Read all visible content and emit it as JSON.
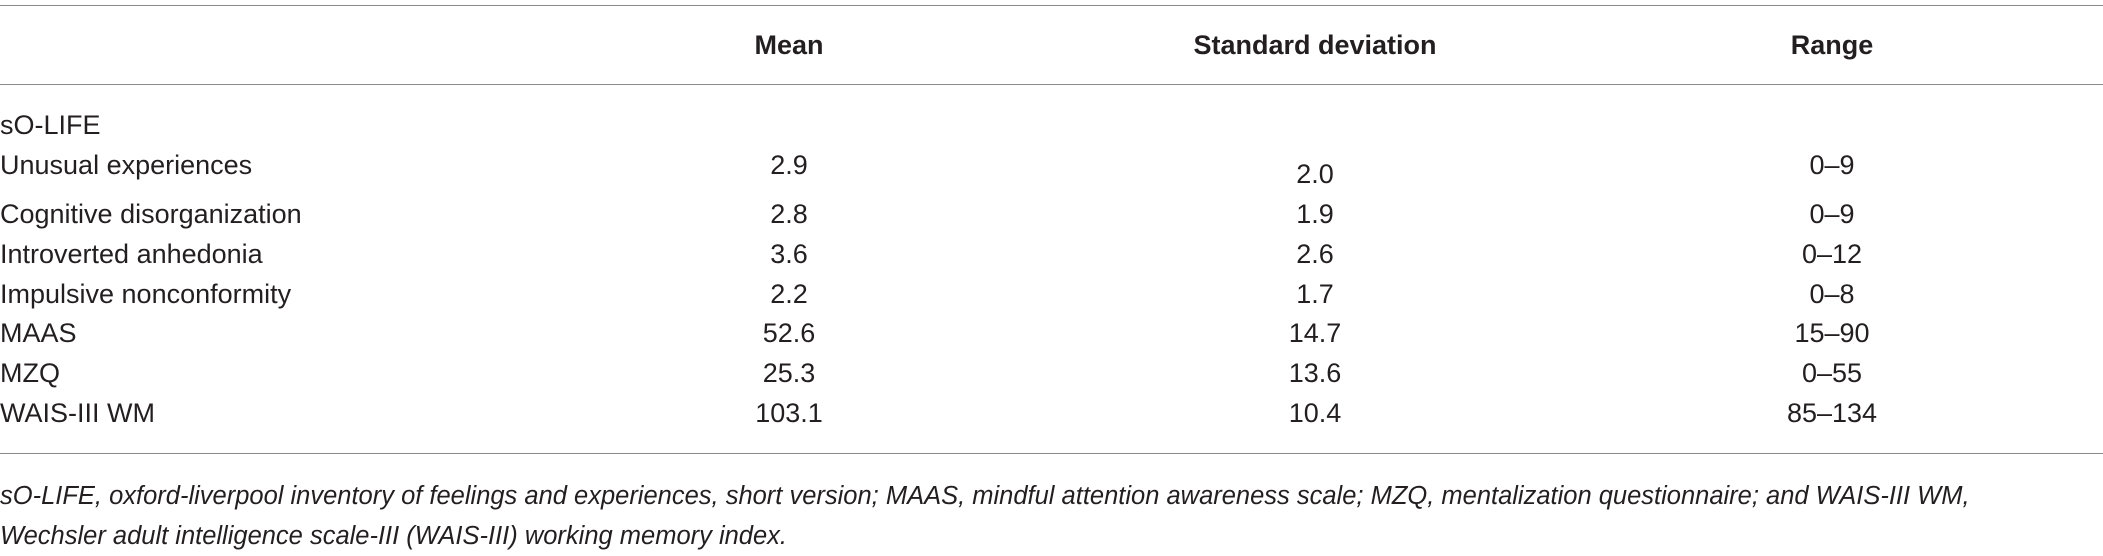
{
  "table": {
    "columns": [
      "",
      "Mean",
      "Standard deviation",
      "Range"
    ],
    "section_label": "sO-LIFE",
    "rows": [
      {
        "label": "Unusual experiences",
        "mean": "2.9",
        "sd": "2.0",
        "range": "0–9"
      },
      {
        "label": "Cognitive disorganization",
        "mean": "2.8",
        "sd": "1.9",
        "range": "0–9"
      },
      {
        "label": "Introverted anhedonia",
        "mean": "3.6",
        "sd": "2.6",
        "range": "0–12"
      },
      {
        "label": "Impulsive nonconformity",
        "mean": "2.2",
        "sd": "1.7",
        "range": "0–8"
      },
      {
        "label": "MAAS",
        "mean": "52.6",
        "sd": "14.7",
        "range": "15–90"
      },
      {
        "label": "MZQ",
        "mean": "25.3",
        "sd": "13.6",
        "range": "0–55"
      },
      {
        "label": "WAIS-III WM",
        "mean": "103.1",
        "sd": "10.4",
        "range": "85–134"
      }
    ],
    "footnote": "sO-LIFE, oxford-liverpool inventory of feelings and experiences, short version; MAAS, mindful attention awareness scale; MZQ, mentalization questionnaire; and WAIS-III WM, Wechsler adult intelligence scale-III (WAIS-III) working memory index."
  }
}
